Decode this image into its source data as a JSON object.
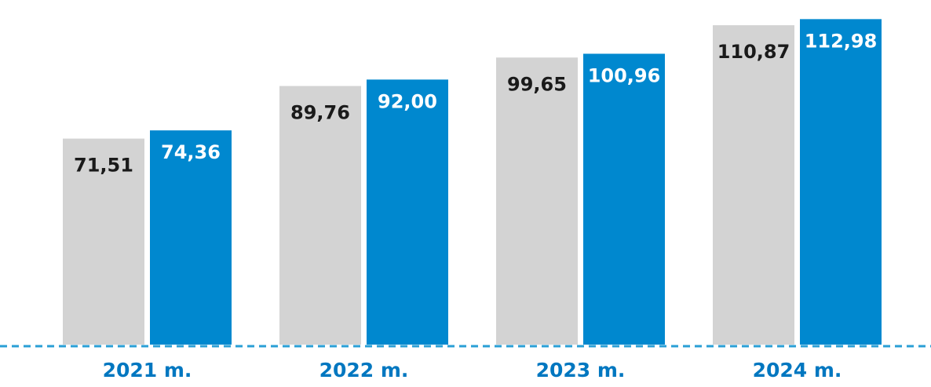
{
  "chart_data": {
    "type": "bar",
    "categories": [
      "2021 m.",
      "2022 m.",
      "2023 m.",
      "2024 m."
    ],
    "series": [
      {
        "values": [
          71.51,
          89.76,
          99.65,
          110.87
        ],
        "labels": [
          "71,51",
          "89,76",
          "99,65",
          "110,87"
        ],
        "color": "#d3d3d3",
        "label_color": "#1a1a1a"
      },
      {
        "values": [
          74.36,
          92.0,
          100.96,
          112.98
        ],
        "labels": [
          "74,36",
          "92,00",
          "100,96",
          "112,98"
        ],
        "color": "#0088cf",
        "label_color": "#ffffff"
      }
    ],
    "title": "",
    "xlabel": "",
    "ylabel": "",
    "baseline_style": "dashed",
    "baseline_color": "#2a9fd6",
    "category_label_color": "#0077c0"
  }
}
